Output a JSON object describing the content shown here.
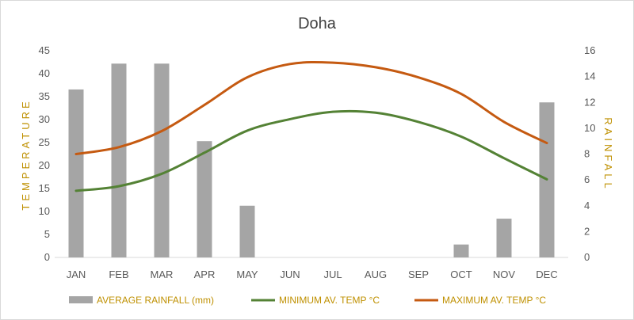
{
  "chart_data": {
    "type": "bar+line",
    "title": "Doha",
    "categories": [
      "JAN",
      "FEB",
      "MAR",
      "APR",
      "MAY",
      "JUN",
      "JUL",
      "AUG",
      "SEP",
      "OCT",
      "NOV",
      "DEC"
    ],
    "ylabel_left": "TEMPERATURE",
    "ylabel_right": "RAINFALL",
    "ylim_left": [
      0,
      45
    ],
    "yticks_left": [
      0,
      5,
      10,
      15,
      20,
      25,
      30,
      35,
      40,
      45
    ],
    "ylim_right": [
      0,
      16
    ],
    "yticks_right": [
      0,
      2,
      4,
      6,
      8,
      10,
      12,
      14,
      16
    ],
    "grid": false,
    "legend_position": "bottom",
    "series": [
      {
        "name": "AVERAGE RAINFALL (mm)",
        "type": "bar",
        "axis": "right",
        "color": "#a5a5a5",
        "values": [
          13,
          15,
          15,
          9,
          4,
          0,
          0,
          0,
          0,
          1,
          3,
          12
        ]
      },
      {
        "name": "MINIMUM AV. TEMP °C",
        "type": "line",
        "axis": "left",
        "color": "#548235",
        "values": [
          14.5,
          15.5,
          18.2,
          22.8,
          27.6,
          30.1,
          31.7,
          31.5,
          29.5,
          26.3,
          21.6,
          17.0
        ]
      },
      {
        "name": "MAXIMUM AV. TEMP °C",
        "type": "line",
        "axis": "left",
        "color": "#c55a11",
        "values": [
          22.5,
          24.0,
          27.5,
          33.2,
          39.2,
          42.1,
          42.4,
          41.4,
          39.2,
          35.6,
          29.5,
          24.9
        ]
      }
    ]
  }
}
